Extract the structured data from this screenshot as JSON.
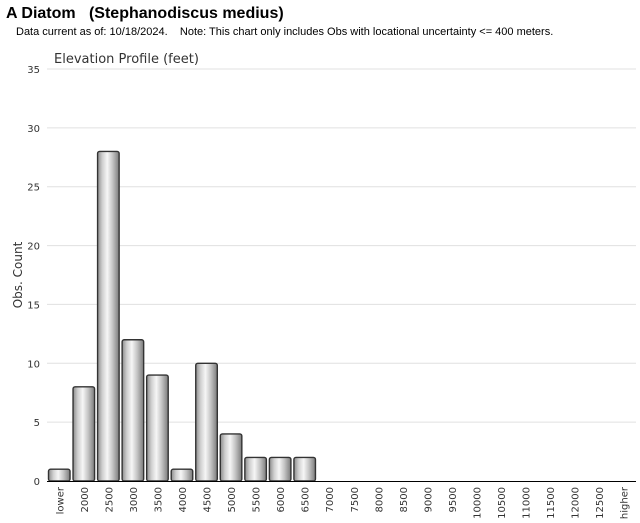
{
  "header": {
    "title": "A Diatom   (Stephanodiscus medius)",
    "data_current": "Data current as of: 10/18/2024.",
    "note": "Note: This chart only includes Obs with locational uncertainty <= 400 meters."
  },
  "chart_data": {
    "type": "bar",
    "title": "Elevation Profile (feet)",
    "xlabel": "",
    "ylabel": "Obs. Count",
    "ylim": [
      0,
      35
    ],
    "yticks": [
      0,
      5,
      10,
      15,
      20,
      25,
      30,
      35
    ],
    "grid": true,
    "categories": [
      "lower",
      "2000",
      "2500",
      "3000",
      "3500",
      "4000",
      "4500",
      "5000",
      "5500",
      "6000",
      "6500",
      "7000",
      "7500",
      "8000",
      "8500",
      "9000",
      "9500",
      "10000",
      "10500",
      "11000",
      "11500",
      "12000",
      "12500",
      "higher"
    ],
    "values": [
      1,
      8,
      28,
      12,
      9,
      1,
      10,
      4,
      2,
      2,
      2,
      0,
      0,
      0,
      0,
      0,
      0,
      0,
      0,
      0,
      0,
      0,
      0,
      0
    ]
  }
}
